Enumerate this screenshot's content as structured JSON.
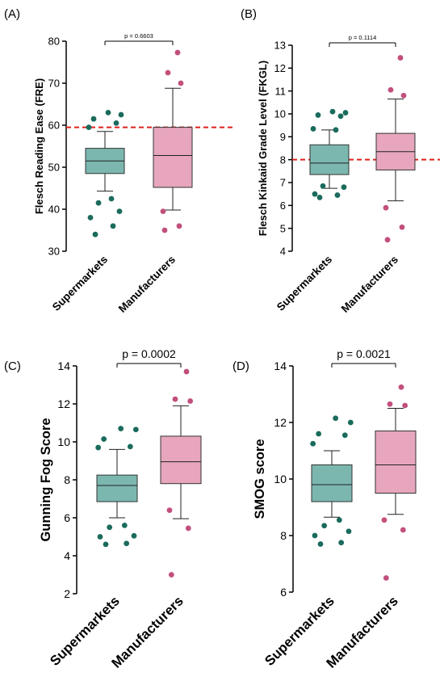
{
  "colors": {
    "supermarkets": "#7bb7af",
    "supermarkets_dots": "#1a6b5c",
    "manufacturers": "#e7a6bd",
    "manufacturers_dots": "#c24f7c",
    "reference": "#e0201b"
  },
  "chart_data": [
    {
      "type": "box",
      "panel": "(A)",
      "ylabel": "Flesch Reading Ease (FRE)",
      "ylim": [
        30,
        80
      ],
      "yticks": [
        30,
        40,
        50,
        60,
        70,
        80
      ],
      "categories": [
        "Supermarkets",
        "Manufacturers"
      ],
      "pvalue": "p = 0.6603",
      "reference_line": 59.5,
      "boxes": [
        {
          "name": "Supermarkets",
          "whisker_low": 44.3,
          "q1": 48.5,
          "median": 51.5,
          "q3": 54.5,
          "whisker_high": 58.5,
          "outliers": [
            34,
            36,
            38,
            39.5,
            41.5,
            42.5,
            59.5,
            60.5,
            61.5,
            62.5,
            63
          ]
        },
        {
          "name": "Manufacturers",
          "whisker_low": 39.8,
          "q1": 45.2,
          "median": 52.8,
          "q3": 59.5,
          "whisker_high": 68.8,
          "outliers": [
            35,
            36,
            39.5,
            70,
            72.5,
            77.3
          ]
        }
      ]
    },
    {
      "type": "box",
      "panel": "(B)",
      "ylabel": "Flesch Kinkaid Grade Level (FKGL)",
      "ylim": [
        4,
        13
      ],
      "yticks": [
        4,
        5,
        6,
        7,
        8,
        9,
        10,
        11,
        12,
        13
      ],
      "categories": [
        "Supermarkets",
        "Manufacturers"
      ],
      "pvalue": "p = 0.1114",
      "reference_line": 8,
      "boxes": [
        {
          "name": "Supermarkets",
          "whisker_low": 6.75,
          "q1": 7.35,
          "median": 7.85,
          "q3": 8.65,
          "whisker_high": 9.3,
          "outliers": [
            6.35,
            6.45,
            6.5,
            6.8,
            6.85,
            9.3,
            9.35,
            9.9,
            9.95,
            10.05,
            10.1
          ]
        },
        {
          "name": "Manufacturers",
          "whisker_low": 6.2,
          "q1": 7.55,
          "median": 8.35,
          "q3": 9.15,
          "whisker_high": 10.65,
          "outliers": [
            4.5,
            5.05,
            5.9,
            10.8,
            11.05,
            12.45
          ]
        }
      ]
    },
    {
      "type": "box",
      "panel": "(C)",
      "ylabel": "Gunning Fog Score",
      "ylim": [
        2,
        14
      ],
      "yticks": [
        2,
        4,
        6,
        8,
        10,
        12,
        14
      ],
      "categories": [
        "Supermarkets",
        "Manufacturers"
      ],
      "pvalue": "p = 0.0002",
      "reference_line": null,
      "boxes": [
        {
          "name": "Supermarkets",
          "whisker_low": 6.0,
          "q1": 6.85,
          "median": 7.7,
          "q3": 8.25,
          "whisker_high": 9.6,
          "outliers": [
            4.6,
            4.65,
            5.0,
            5.05,
            5.5,
            5.6,
            9.7,
            9.75,
            10.15,
            10.65,
            10.7
          ]
        },
        {
          "name": "Manufacturers",
          "whisker_low": 5.95,
          "q1": 7.8,
          "median": 8.95,
          "q3": 10.3,
          "whisker_high": 11.9,
          "outliers": [
            3.0,
            5.45,
            6.4,
            12.15,
            12.25,
            13.7
          ]
        }
      ]
    },
    {
      "type": "box",
      "panel": "(D)",
      "ylabel": "SMOG score",
      "ylim": [
        6,
        14
      ],
      "yticks": [
        6,
        8,
        10,
        12,
        14
      ],
      "categories": [
        "Supermarkets",
        "Manufacturers"
      ],
      "pvalue": "p = 0.0021",
      "reference_line": null,
      "boxes": [
        {
          "name": "Supermarkets",
          "whisker_low": 8.65,
          "q1": 9.2,
          "median": 9.8,
          "q3": 10.5,
          "whisker_high": 11.0,
          "outliers": [
            7.7,
            7.75,
            8.0,
            8.15,
            8.35,
            8.55,
            11.25,
            11.55,
            11.6,
            12.0,
            12.15
          ]
        },
        {
          "name": "Manufacturers",
          "whisker_low": 8.75,
          "q1": 9.5,
          "median": 10.5,
          "q3": 11.7,
          "whisker_high": 12.5,
          "outliers": [
            6.5,
            8.2,
            8.55,
            12.6,
            12.65,
            13.25
          ]
        }
      ]
    }
  ]
}
